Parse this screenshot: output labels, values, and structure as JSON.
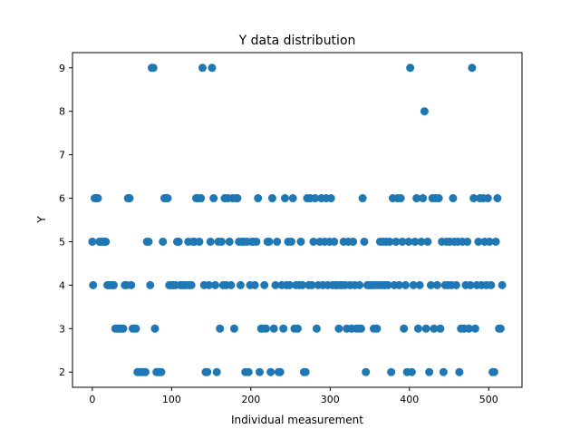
{
  "chart_data": {
    "type": "scatter",
    "title": "Y data distribution",
    "xlabel": "Individual measurement",
    "ylabel": "Y",
    "xlim": [
      -25,
      542
    ],
    "ylim": [
      1.65,
      9.35
    ],
    "xticks": [
      0,
      100,
      200,
      300,
      400,
      500
    ],
    "yticks": [
      2,
      3,
      4,
      5,
      6,
      7,
      8,
      9
    ],
    "grid": false,
    "legend": "none",
    "marker_color": "#1f77b4",
    "series": [
      {
        "points": [
          [
            0,
            5
          ],
          [
            1,
            4
          ],
          [
            3,
            6
          ],
          [
            5,
            6
          ],
          [
            7,
            6
          ],
          [
            9,
            5
          ],
          [
            11,
            5
          ],
          [
            13,
            5
          ],
          [
            15,
            5
          ],
          [
            17,
            5
          ],
          [
            19,
            4
          ],
          [
            21,
            4
          ],
          [
            23,
            4
          ],
          [
            25,
            4
          ],
          [
            27,
            4
          ],
          [
            29,
            3
          ],
          [
            31,
            3
          ],
          [
            33,
            3
          ],
          [
            35,
            3
          ],
          [
            37,
            3
          ],
          [
            39,
            3
          ],
          [
            41,
            4
          ],
          [
            43,
            4
          ],
          [
            45,
            6
          ],
          [
            47,
            6
          ],
          [
            49,
            4
          ],
          [
            51,
            3
          ],
          [
            53,
            3
          ],
          [
            55,
            3
          ],
          [
            57,
            2
          ],
          [
            59,
            2
          ],
          [
            61,
            2
          ],
          [
            63,
            2
          ],
          [
            65,
            2
          ],
          [
            67,
            2
          ],
          [
            69,
            5
          ],
          [
            71,
            5
          ],
          [
            73,
            4
          ],
          [
            75,
            9
          ],
          [
            77,
            9
          ],
          [
            79,
            3
          ],
          [
            81,
            2
          ],
          [
            83,
            2
          ],
          [
            85,
            2
          ],
          [
            87,
            2
          ],
          [
            89,
            5
          ],
          [
            91,
            6
          ],
          [
            93,
            6
          ],
          [
            95,
            6
          ],
          [
            97,
            4
          ],
          [
            99,
            4
          ],
          [
            101,
            4
          ],
          [
            103,
            4
          ],
          [
            105,
            4
          ],
          [
            107,
            5
          ],
          [
            109,
            5
          ],
          [
            111,
            4
          ],
          [
            113,
            4
          ],
          [
            115,
            4
          ],
          [
            117,
            4
          ],
          [
            119,
            4
          ],
          [
            121,
            5
          ],
          [
            123,
            4
          ],
          [
            125,
            4
          ],
          [
            127,
            5
          ],
          [
            129,
            5
          ],
          [
            131,
            6
          ],
          [
            133,
            6
          ],
          [
            135,
            5
          ],
          [
            137,
            6
          ],
          [
            139,
            9
          ],
          [
            141,
            4
          ],
          [
            143,
            2
          ],
          [
            145,
            2
          ],
          [
            147,
            4
          ],
          [
            149,
            5
          ],
          [
            151,
            9
          ],
          [
            153,
            6
          ],
          [
            155,
            4
          ],
          [
            157,
            2
          ],
          [
            159,
            5
          ],
          [
            161,
            3
          ],
          [
            163,
            5
          ],
          [
            165,
            4
          ],
          [
            167,
            6
          ],
          [
            169,
            4
          ],
          [
            171,
            6
          ],
          [
            173,
            5
          ],
          [
            175,
            4
          ],
          [
            177,
            6
          ],
          [
            179,
            3
          ],
          [
            181,
            6
          ],
          [
            183,
            6
          ],
          [
            185,
            5
          ],
          [
            187,
            4
          ],
          [
            189,
            5
          ],
          [
            191,
            5
          ],
          [
            193,
            2
          ],
          [
            195,
            5
          ],
          [
            197,
            2
          ],
          [
            199,
            4
          ],
          [
            201,
            5
          ],
          [
            203,
            5
          ],
          [
            205,
            4
          ],
          [
            207,
            5
          ],
          [
            209,
            6
          ],
          [
            211,
            2
          ],
          [
            213,
            3
          ],
          [
            215,
            3
          ],
          [
            217,
            4
          ],
          [
            219,
            3
          ],
          [
            221,
            5
          ],
          [
            223,
            5
          ],
          [
            225,
            2
          ],
          [
            227,
            6
          ],
          [
            229,
            3
          ],
          [
            231,
            4
          ],
          [
            233,
            5
          ],
          [
            235,
            2
          ],
          [
            237,
            2
          ],
          [
            239,
            4
          ],
          [
            241,
            3
          ],
          [
            243,
            6
          ],
          [
            245,
            4
          ],
          [
            247,
            5
          ],
          [
            249,
            4
          ],
          [
            251,
            5
          ],
          [
            253,
            6
          ],
          [
            255,
            3
          ],
          [
            257,
            4
          ],
          [
            259,
            3
          ],
          [
            261,
            4
          ],
          [
            263,
            5
          ],
          [
            265,
            4
          ],
          [
            267,
            2
          ],
          [
            269,
            2
          ],
          [
            271,
            6
          ],
          [
            273,
            4
          ],
          [
            275,
            6
          ],
          [
            277,
            4
          ],
          [
            279,
            5
          ],
          [
            281,
            6
          ],
          [
            283,
            3
          ],
          [
            285,
            4
          ],
          [
            287,
            5
          ],
          [
            289,
            6
          ],
          [
            291,
            4
          ],
          [
            293,
            5
          ],
          [
            295,
            6
          ],
          [
            297,
            4
          ],
          [
            299,
            5
          ],
          [
            301,
            6
          ],
          [
            303,
            4
          ],
          [
            305,
            5
          ],
          [
            307,
            4
          ],
          [
            309,
            4
          ],
          [
            311,
            3
          ],
          [
            313,
            4
          ],
          [
            315,
            4
          ],
          [
            317,
            5
          ],
          [
            319,
            4
          ],
          [
            321,
            3
          ],
          [
            323,
            5
          ],
          [
            325,
            4
          ],
          [
            327,
            3
          ],
          [
            329,
            5
          ],
          [
            331,
            4
          ],
          [
            333,
            3
          ],
          [
            335,
            3
          ],
          [
            337,
            4
          ],
          [
            339,
            3
          ],
          [
            341,
            6
          ],
          [
            343,
            5
          ],
          [
            345,
            2
          ],
          [
            347,
            4
          ],
          [
            349,
            4
          ],
          [
            351,
            4
          ],
          [
            353,
            4
          ],
          [
            355,
            3
          ],
          [
            357,
            4
          ],
          [
            359,
            3
          ],
          [
            361,
            4
          ],
          [
            363,
            5
          ],
          [
            365,
            4
          ],
          [
            367,
            5
          ],
          [
            369,
            4
          ],
          [
            371,
            5
          ],
          [
            373,
            4
          ],
          [
            375,
            5
          ],
          [
            377,
            2
          ],
          [
            379,
            6
          ],
          [
            381,
            4
          ],
          [
            383,
            5
          ],
          [
            385,
            6
          ],
          [
            387,
            4
          ],
          [
            389,
            6
          ],
          [
            391,
            5
          ],
          [
            393,
            3
          ],
          [
            395,
            4
          ],
          [
            397,
            2
          ],
          [
            399,
            5
          ],
          [
            401,
            9
          ],
          [
            403,
            2
          ],
          [
            405,
            4
          ],
          [
            407,
            5
          ],
          [
            409,
            6
          ],
          [
            411,
            3
          ],
          [
            413,
            4
          ],
          [
            415,
            5
          ],
          [
            417,
            6
          ],
          [
            419,
            8
          ],
          [
            421,
            3
          ],
          [
            423,
            5
          ],
          [
            425,
            2
          ],
          [
            427,
            4
          ],
          [
            429,
            6
          ],
          [
            431,
            3
          ],
          [
            433,
            6
          ],
          [
            435,
            4
          ],
          [
            437,
            6
          ],
          [
            439,
            3
          ],
          [
            441,
            5
          ],
          [
            443,
            2
          ],
          [
            445,
            4
          ],
          [
            447,
            5
          ],
          [
            449,
            4
          ],
          [
            451,
            5
          ],
          [
            453,
            4
          ],
          [
            455,
            6
          ],
          [
            457,
            5
          ],
          [
            459,
            4
          ],
          [
            461,
            5
          ],
          [
            463,
            2
          ],
          [
            465,
            3
          ],
          [
            467,
            5
          ],
          [
            469,
            3
          ],
          [
            471,
            4
          ],
          [
            473,
            5
          ],
          [
            475,
            3
          ],
          [
            477,
            4
          ],
          [
            479,
            9
          ],
          [
            481,
            6
          ],
          [
            483,
            3
          ],
          [
            485,
            4
          ],
          [
            487,
            5
          ],
          [
            489,
            6
          ],
          [
            491,
            4
          ],
          [
            493,
            6
          ],
          [
            495,
            5
          ],
          [
            497,
            4
          ],
          [
            499,
            6
          ],
          [
            501,
            5
          ],
          [
            503,
            4
          ],
          [
            505,
            2
          ],
          [
            507,
            2
          ],
          [
            509,
            5
          ],
          [
            511,
            6
          ],
          [
            513,
            3
          ],
          [
            515,
            3
          ],
          [
            517,
            4
          ]
        ]
      }
    ]
  }
}
